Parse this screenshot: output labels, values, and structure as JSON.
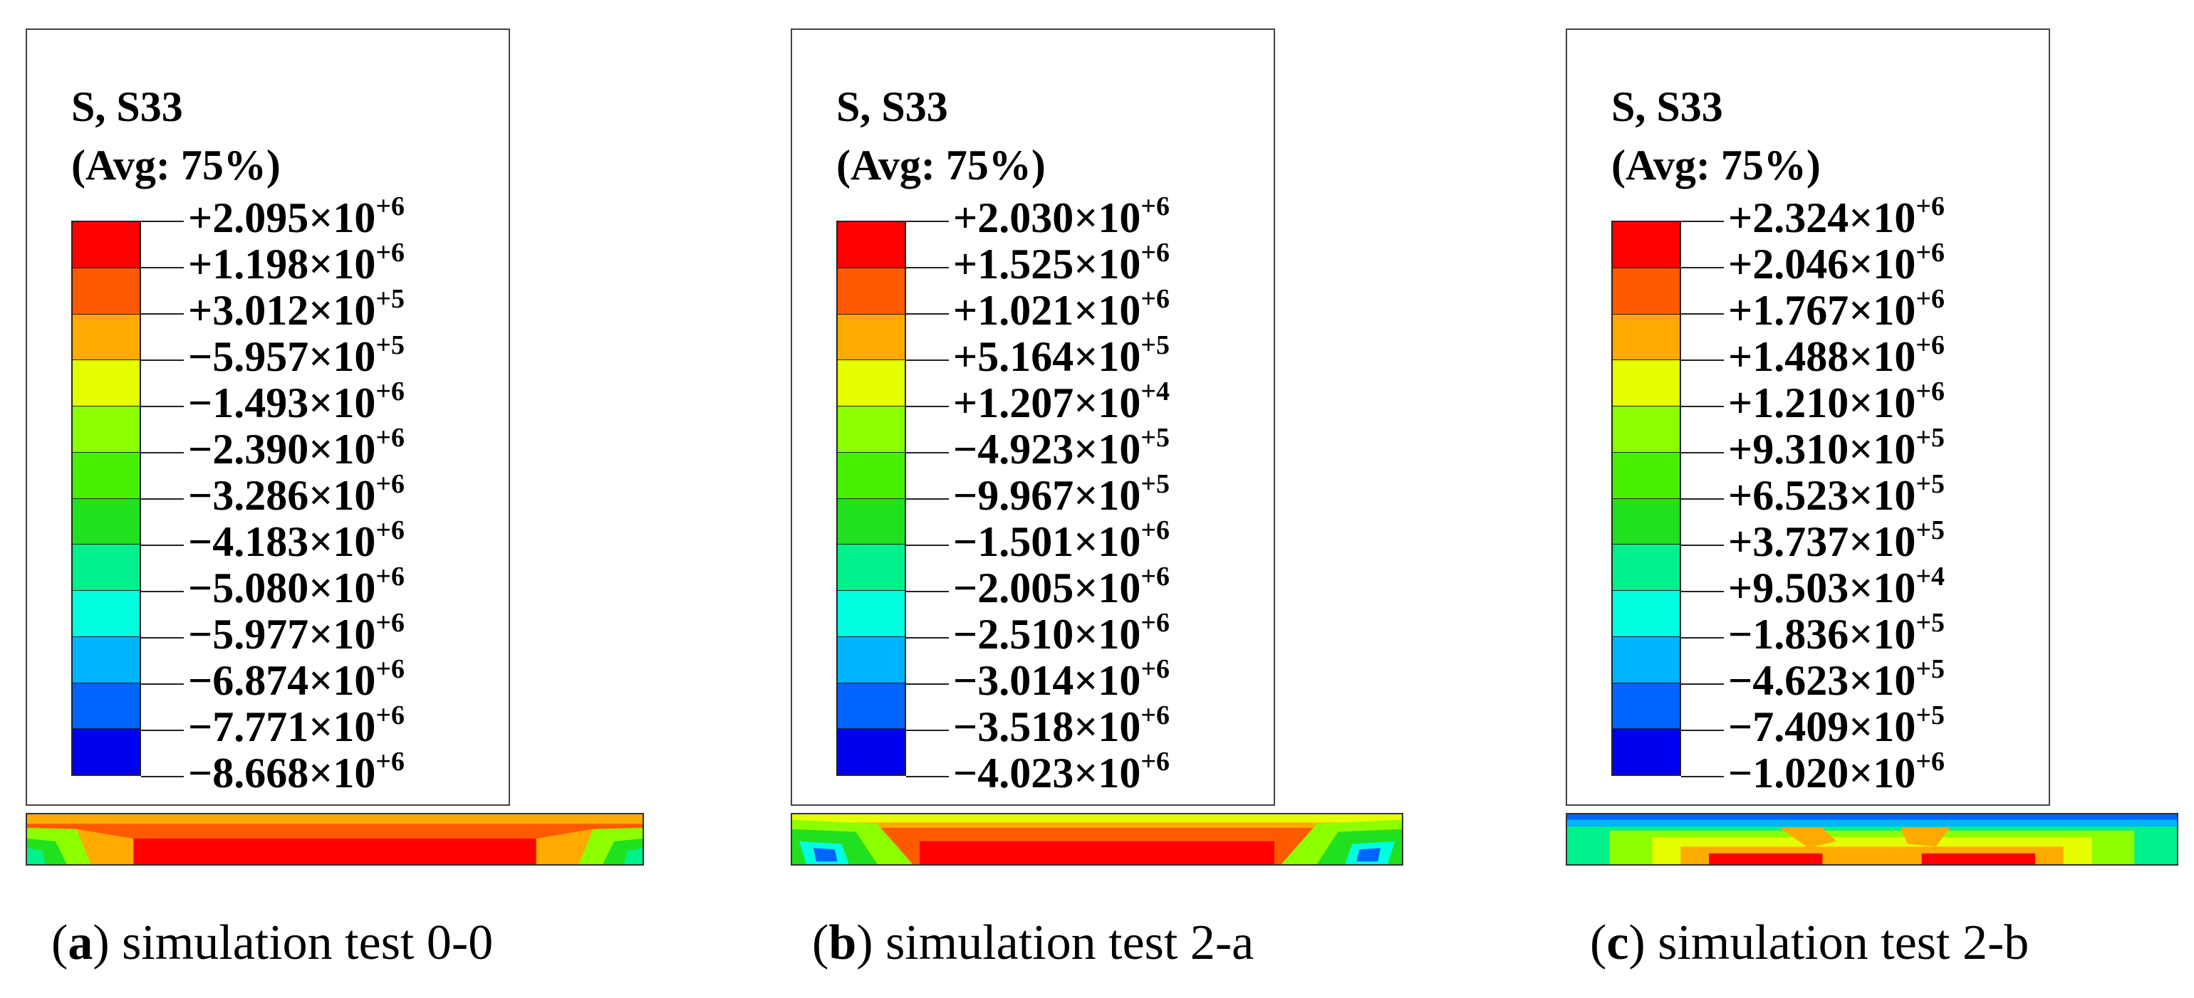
{
  "panels": [
    {
      "legend_title_line1": "S, S33",
      "legend_title_line2": "(Avg: 75%)",
      "values": [
        {
          "text": "+2.095×10",
          "exp": "+6"
        },
        {
          "text": "+1.198×10",
          "exp": "+6"
        },
        {
          "text": "+3.012×10",
          "exp": "+5"
        },
        {
          "text": "−5.957×10",
          "exp": "+5"
        },
        {
          "text": "−1.493×10",
          "exp": "+6"
        },
        {
          "text": "−2.390×10",
          "exp": "+6"
        },
        {
          "text": "−3.286×10",
          "exp": "+6"
        },
        {
          "text": "−4.183×10",
          "exp": "+6"
        },
        {
          "text": "−5.080×10",
          "exp": "+6"
        },
        {
          "text": "−5.977×10",
          "exp": "+6"
        },
        {
          "text": "−6.874×10",
          "exp": "+6"
        },
        {
          "text": "−7.771×10",
          "exp": "+6"
        },
        {
          "text": "−8.668×10",
          "exp": "+6"
        }
      ],
      "caption_letter": "a",
      "caption_text": "simulation test 0-0"
    },
    {
      "legend_title_line1": "S, S33",
      "legend_title_line2": "(Avg: 75%)",
      "values": [
        {
          "text": "+2.030×10",
          "exp": "+6"
        },
        {
          "text": "+1.525×10",
          "exp": "+6"
        },
        {
          "text": "+1.021×10",
          "exp": "+6"
        },
        {
          "text": "+5.164×10",
          "exp": "+5"
        },
        {
          "text": "+1.207×10",
          "exp": "+4"
        },
        {
          "text": "−4.923×10",
          "exp": "+5"
        },
        {
          "text": "−9.967×10",
          "exp": "+5"
        },
        {
          "text": "−1.501×10",
          "exp": "+6"
        },
        {
          "text": "−2.005×10",
          "exp": "+6"
        },
        {
          "text": "−2.510×10",
          "exp": "+6"
        },
        {
          "text": "−3.014×10",
          "exp": "+6"
        },
        {
          "text": "−3.518×10",
          "exp": "+6"
        },
        {
          "text": "−4.023×10",
          "exp": "+6"
        }
      ],
      "caption_letter": "b",
      "caption_text": "simulation test 2-a"
    },
    {
      "legend_title_line1": "S, S33",
      "legend_title_line2": "(Avg: 75%)",
      "values": [
        {
          "text": "+2.324×10",
          "exp": "+6"
        },
        {
          "text": "+2.046×10",
          "exp": "+6"
        },
        {
          "text": "+1.767×10",
          "exp": "+6"
        },
        {
          "text": "+1.488×10",
          "exp": "+6"
        },
        {
          "text": "+1.210×10",
          "exp": "+6"
        },
        {
          "text": "+9.310×10",
          "exp": "+5"
        },
        {
          "text": "+6.523×10",
          "exp": "+5"
        },
        {
          "text": "+3.737×10",
          "exp": "+5"
        },
        {
          "text": "+9.503×10",
          "exp": "+4"
        },
        {
          "text": "−1.836×10",
          "exp": "+5"
        },
        {
          "text": "−4.623×10",
          "exp": "+5"
        },
        {
          "text": "−7.409×10",
          "exp": "+5"
        },
        {
          "text": "−1.020×10",
          "exp": "+6"
        }
      ],
      "caption_letter": "c",
      "caption_text": "simulation test 2-b"
    }
  ],
  "colors": {
    "bands": [
      "#ff0000",
      "#ff5a00",
      "#ffaa00",
      "#e6ff00",
      "#8cff00",
      "#46f000",
      "#20e020",
      "#00f08c",
      "#00ffe0",
      "#00b4ff",
      "#0064ff",
      "#0000f0"
    ]
  }
}
